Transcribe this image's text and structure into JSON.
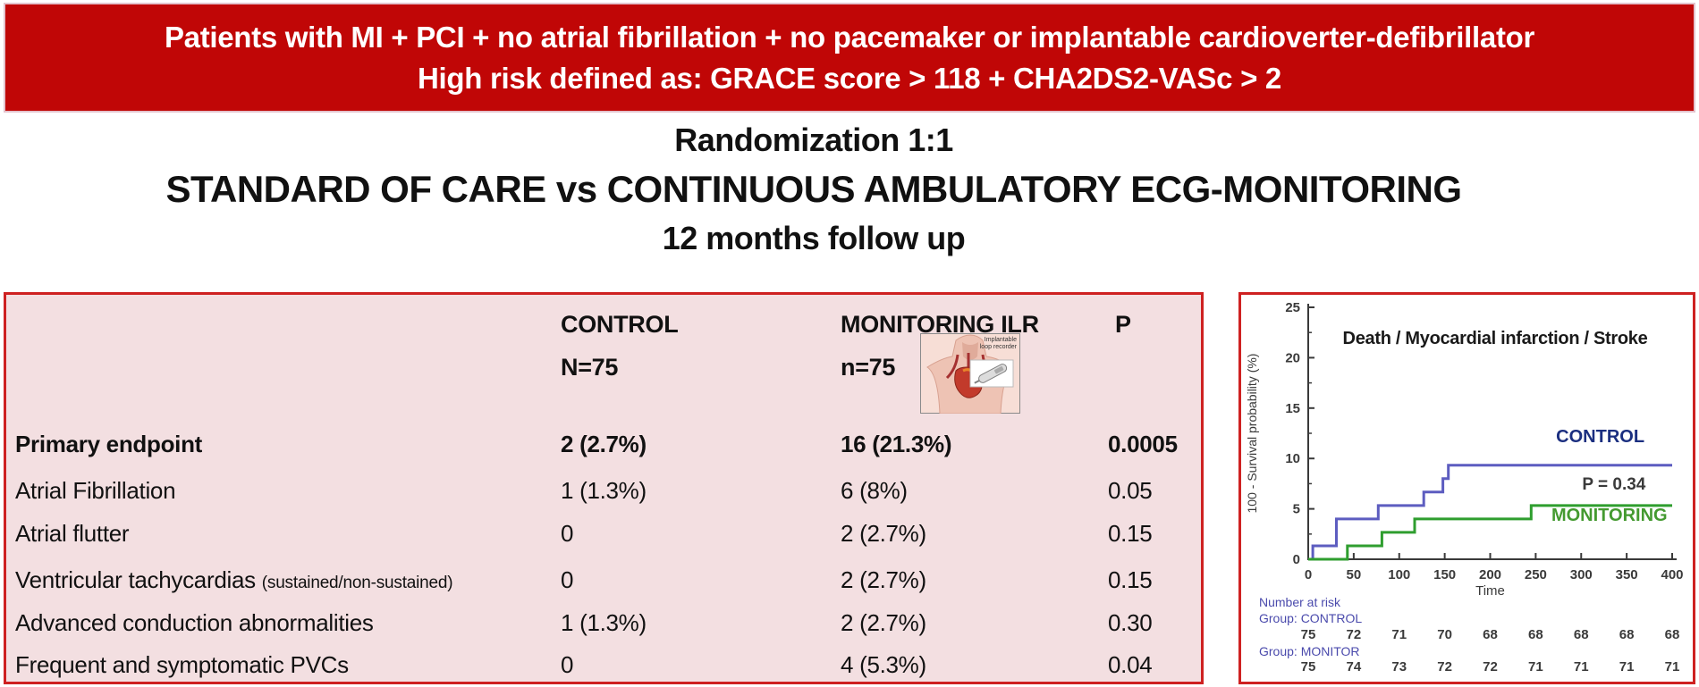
{
  "banner": {
    "line1": "Patients with MI + PCI + no atrial fibrillation + no pacemaker or implantable cardioverter-defibrillator",
    "line2": "High risk defined as: GRACE score > 118 + CHA2DS2-VASc > 2"
  },
  "title": {
    "line1": "Randomization 1:1",
    "line2": "STANDARD OF CARE vs CONTINUOUS AMBULATORY ECG-MONITORING",
    "line3": "12 months follow up"
  },
  "table": {
    "col_control_header": "CONTROL",
    "col_control_sub": "N=75",
    "col_monitoring_header": "MONITORING ILR",
    "col_monitoring_sub": "n=75",
    "col_p_header": "P",
    "ilr_image_label_line1": "Implantable",
    "ilr_image_label_line2": "loop recorder",
    "rows": [
      {
        "label": "Primary endpoint",
        "label_small": "",
        "control": "2 (2.7%)",
        "monitoring": "16 (21.3%)",
        "p": "0.0005"
      },
      {
        "label": "Atrial Fibrillation",
        "label_small": "",
        "control": "1 (1.3%)",
        "monitoring": "6 (8%)",
        "p": "0.05"
      },
      {
        "label": "Atrial flutter",
        "label_small": "",
        "control": "0",
        "monitoring": "2 (2.7%)",
        "p": "0.15"
      },
      {
        "label": "Ventricular tachycardias",
        "label_small": "(sustained/non-sustained)",
        "control": "0",
        "monitoring": "2 (2.7%)",
        "p": "0.15"
      },
      {
        "label": "Advanced conduction abnormalities",
        "label_small": "",
        "control": "1 (1.3%)",
        "monitoring": "2 (2.7%)",
        "p": "0.30"
      },
      {
        "label": "Frequent and symptomatic PVCs",
        "label_small": "",
        "control": "0",
        "monitoring": "4 (5.3%)",
        "p": "0.04"
      }
    ]
  },
  "chart_data": {
    "type": "line",
    "subtype": "kaplan-meier-step",
    "title": "Death / Myocardial infarction / Stroke",
    "xlabel": "Time",
    "ylabel": "100 - Survival probability (%)",
    "xlim": [
      0,
      400
    ],
    "ylim": [
      0,
      25
    ],
    "xticks": [
      0,
      50,
      100,
      150,
      200,
      250,
      300,
      350,
      400
    ],
    "yticks": [
      0,
      5,
      10,
      15,
      20,
      25
    ],
    "yticks_minor": [
      2.5,
      7.5,
      12.5,
      17.5,
      22.5
    ],
    "grid": false,
    "axis_color": "#3a3a3a",
    "series": [
      {
        "name": "CONTROL",
        "color": "#5D5DC0",
        "x": [
          0,
          5,
          31,
          77,
          127,
          148,
          154,
          400
        ],
        "y": [
          0,
          1.33,
          4.0,
          5.33,
          6.67,
          8.0,
          9.33,
          9.33
        ]
      },
      {
        "name": "MONITORING",
        "color": "#2F9E2F",
        "x": [
          0,
          43,
          81,
          117,
          245,
          400
        ],
        "y": [
          0,
          1.33,
          2.67,
          4.0,
          5.33,
          5.33
        ]
      }
    ],
    "annotations": [
      {
        "text": "CONTROL",
        "x": 321,
        "y": 11.6,
        "color": "#1B2F80",
        "size": 20
      },
      {
        "text": "P = 0.34",
        "x": 336,
        "y": 6.9,
        "color": "#3a3a3a",
        "size": 19
      },
      {
        "text": "MONITORING",
        "x": 331,
        "y": 3.8,
        "color": "#449A30",
        "size": 20
      }
    ],
    "number_at_risk": {
      "title": "Number at risk",
      "label_color": "#4A4AAC",
      "value_color": "#3a3a3a",
      "groups": [
        {
          "label": "Group: CONTROL",
          "values": [
            "75",
            "72",
            "71",
            "70",
            "68",
            "68",
            "68",
            "68",
            "68"
          ]
        },
        {
          "label": "Group: MONITOR",
          "values": [
            "75",
            "74",
            "73",
            "72",
            "72",
            "71",
            "71",
            "71",
            "71"
          ]
        }
      ]
    }
  }
}
